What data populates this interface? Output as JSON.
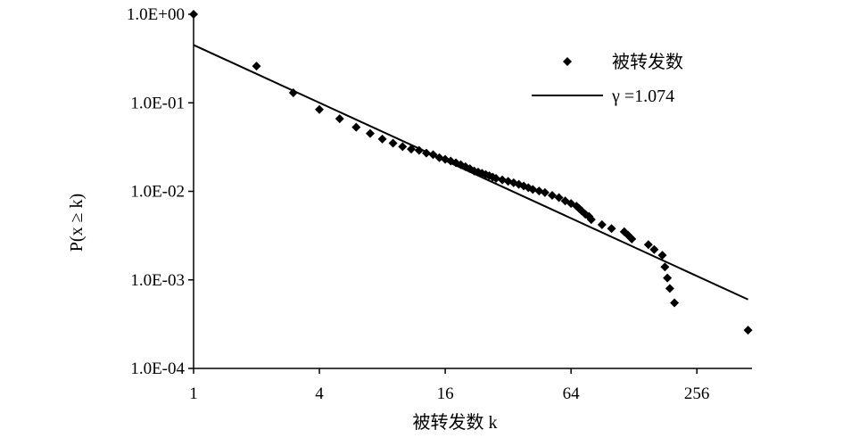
{
  "chart_data": {
    "type": "scatter",
    "xlabel": "被转发数 k",
    "ylabel": "P(x ≥ k)",
    "x_scale": "log",
    "y_scale": "log",
    "x_log_base": 2,
    "xlim": [
      1,
      470
    ],
    "ylim": [
      0.0001,
      1
    ],
    "x_ticks": [
      {
        "value": 1,
        "label": "1"
      },
      {
        "value": 4,
        "label": "4"
      },
      {
        "value": 16,
        "label": "16"
      },
      {
        "value": 64,
        "label": "64"
      },
      {
        "value": 256,
        "label": "256"
      }
    ],
    "y_ticks": [
      {
        "value": 1,
        "label": "1.0E+00"
      },
      {
        "value": 0.1,
        "label": "1.0E-01"
      },
      {
        "value": 0.01,
        "label": "1.0E-02"
      },
      {
        "value": 0.001,
        "label": "1.0E-03"
      },
      {
        "value": 0.0001,
        "label": "1.0E-04"
      }
    ],
    "grid": false,
    "legend_position": "top-right",
    "legend": [
      {
        "label": "被转发数",
        "marker": "diamond"
      },
      {
        "label": "γ =1.074",
        "marker": "line"
      }
    ],
    "marker_color": "#000000",
    "series": [
      {
        "marker": "diamond",
        "points": [
          [
            1,
            1.0
          ],
          [
            2,
            0.26
          ],
          [
            3,
            0.13
          ],
          [
            4,
            0.084
          ],
          [
            5,
            0.066
          ],
          [
            6,
            0.053
          ],
          [
            7,
            0.045
          ],
          [
            8,
            0.039
          ],
          [
            9,
            0.035
          ],
          [
            10,
            0.032
          ],
          [
            11,
            0.03
          ],
          [
            12,
            0.029
          ],
          [
            13,
            0.027
          ],
          [
            14,
            0.026
          ],
          [
            15,
            0.024
          ],
          [
            16,
            0.023
          ],
          [
            17,
            0.022
          ],
          [
            18,
            0.021
          ],
          [
            19,
            0.02
          ],
          [
            20,
            0.019
          ],
          [
            21,
            0.018
          ],
          [
            22,
            0.017
          ],
          [
            23,
            0.0165
          ],
          [
            24,
            0.016
          ],
          [
            25,
            0.0155
          ],
          [
            26,
            0.015
          ],
          [
            27,
            0.0145
          ],
          [
            28,
            0.014
          ],
          [
            30,
            0.0135
          ],
          [
            32,
            0.013
          ],
          [
            34,
            0.0125
          ],
          [
            36,
            0.012
          ],
          [
            38,
            0.0115
          ],
          [
            40,
            0.011
          ],
          [
            42,
            0.0105
          ],
          [
            45,
            0.0101
          ],
          [
            48,
            0.0097
          ],
          [
            52,
            0.009
          ],
          [
            56,
            0.0085
          ],
          [
            60,
            0.0078
          ],
          [
            64,
            0.0073
          ],
          [
            68,
            0.0068
          ],
          [
            70,
            0.0064
          ],
          [
            72,
            0.006
          ],
          [
            75,
            0.0055
          ],
          [
            78,
            0.0052
          ],
          [
            80,
            0.0048
          ],
          [
            90,
            0.0042
          ],
          [
            100,
            0.0038
          ],
          [
            115,
            0.0035
          ],
          [
            120,
            0.0032
          ],
          [
            125,
            0.0029
          ],
          [
            150,
            0.0025
          ],
          [
            160,
            0.0022
          ],
          [
            175,
            0.0019
          ],
          [
            180,
            0.0014
          ],
          [
            185,
            0.00105
          ],
          [
            190,
            0.0008
          ],
          [
            200,
            0.00055
          ],
          [
            450,
            0.00027
          ]
        ]
      },
      {
        "marker": "line",
        "name": "γ =1.074",
        "x": [
          1,
          450
        ],
        "y": [
          0.45,
          0.0006
        ]
      }
    ]
  }
}
